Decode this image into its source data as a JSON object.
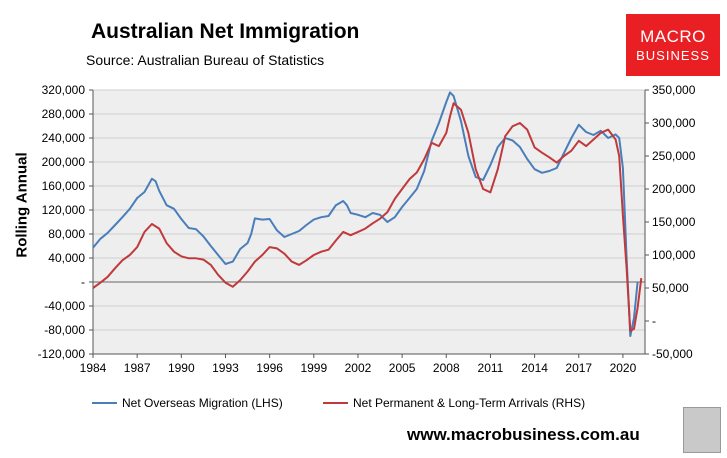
{
  "header": {
    "title": "Australian Net Immigration",
    "source": "Source: Australian Bureau of Statistics"
  },
  "logo": {
    "line1": "MACRO",
    "line2": "BUSINESS"
  },
  "footer": {
    "website": "www.macrobusiness.com.au"
  },
  "colors": {
    "nom": "#4a7ebb",
    "arrivals": "#c0393b",
    "plot_bg": "#eeeeee",
    "logo_red": "#ea1f24"
  },
  "chart_data": {
    "type": "line",
    "title": "Australian Net Immigration",
    "ylabel": "Rolling Annual",
    "xlabel": "",
    "x_ticks": [
      "1984",
      "1987",
      "1990",
      "1993",
      "1996",
      "1999",
      "2002",
      "2005",
      "2008",
      "2011",
      "2014",
      "2017",
      "2020"
    ],
    "left_axis": {
      "ylim": [
        -120000,
        320000
      ],
      "tick_values": [
        320000,
        280000,
        240000,
        200000,
        160000,
        120000,
        80000,
        40000,
        0,
        -40000,
        -80000,
        -120000
      ],
      "tick_labels": [
        "320,000",
        "280,000",
        "240,000",
        "200,000",
        "160,000",
        "120,000",
        "80,000",
        "40,000",
        "-",
        "-40,000",
        "-80,000",
        "-120,000"
      ]
    },
    "right_axis": {
      "ylim": [
        -50000,
        350000
      ],
      "tick_values": [
        350000,
        300000,
        250000,
        200000,
        150000,
        100000,
        50000,
        0,
        -50000
      ],
      "tick_labels": [
        "350,000",
        "300,000",
        "250,000",
        "200,000",
        "150,000",
        "100,000",
        "50,000",
        "-",
        "-50,000"
      ]
    },
    "legend_position": "bottom",
    "series": [
      {
        "name": "Net Overseas Migration (LHS)",
        "axis": "left",
        "x": [
          1984.0,
          1984.5,
          1985.0,
          1985.5,
          1986.0,
          1986.5,
          1987.0,
          1987.5,
          1988.0,
          1988.25,
          1988.5,
          1989.0,
          1989.5,
          1990.0,
          1990.5,
          1991.0,
          1991.5,
          1992.0,
          1992.5,
          1993.0,
          1993.5,
          1994.0,
          1994.5,
          1994.75,
          1995.0,
          1995.5,
          1996.0,
          1996.5,
          1997.0,
          1997.5,
          1998.0,
          1998.5,
          1999.0,
          1999.5,
          2000.0,
          2000.5,
          2001.0,
          2001.25,
          2001.5,
          2002.0,
          2002.5,
          2003.0,
          2003.5,
          2004.0,
          2004.5,
          2005.0,
          2005.5,
          2006.0,
          2006.5,
          2007.0,
          2007.5,
          2008.0,
          2008.25,
          2008.5,
          2009.0,
          2009.5,
          2010.0,
          2010.5,
          2011.0,
          2011.5,
          2012.0,
          2012.5,
          2013.0,
          2013.5,
          2014.0,
          2014.5,
          2015.0,
          2015.5,
          2016.0,
          2016.5,
          2017.0,
          2017.5,
          2018.0,
          2018.5,
          2019.0,
          2019.5,
          2019.75,
          2020.0,
          2020.25,
          2020.5,
          2020.75,
          2021.0
        ],
        "y": [
          57000,
          72000,
          82000,
          95000,
          108000,
          122000,
          140000,
          150000,
          172000,
          168000,
          152000,
          128000,
          122000,
          105000,
          90000,
          88000,
          76000,
          60000,
          45000,
          30000,
          34000,
          55000,
          65000,
          80000,
          106000,
          104000,
          105000,
          86000,
          75000,
          80000,
          85000,
          95000,
          104000,
          108000,
          110000,
          128000,
          135000,
          128000,
          115000,
          112000,
          108000,
          115000,
          112000,
          100000,
          108000,
          125000,
          140000,
          155000,
          185000,
          235000,
          265000,
          300000,
          316000,
          310000,
          268000,
          210000,
          175000,
          170000,
          195000,
          225000,
          240000,
          236000,
          225000,
          205000,
          188000,
          182000,
          185000,
          190000,
          215000,
          240000,
          262000,
          250000,
          245000,
          252000,
          240000,
          246000,
          240000,
          190000,
          40000,
          -90000,
          -60000,
          0
        ]
      },
      {
        "name": "Net Permanent & Long-Term Arrivals (RHS)",
        "axis": "right",
        "x": [
          1984.0,
          1984.5,
          1985.0,
          1985.5,
          1986.0,
          1986.5,
          1987.0,
          1987.5,
          1988.0,
          1988.5,
          1989.0,
          1989.5,
          1990.0,
          1990.5,
          1991.0,
          1991.5,
          1992.0,
          1992.5,
          1993.0,
          1993.5,
          1994.0,
          1994.5,
          1995.0,
          1995.5,
          1996.0,
          1996.5,
          1997.0,
          1997.5,
          1998.0,
          1998.5,
          1999.0,
          1999.5,
          2000.0,
          2000.5,
          2001.0,
          2001.5,
          2002.0,
          2002.5,
          2003.0,
          2003.5,
          2004.0,
          2004.5,
          2005.0,
          2005.5,
          2006.0,
          2006.5,
          2007.0,
          2007.5,
          2008.0,
          2008.25,
          2008.5,
          2009.0,
          2009.5,
          2010.0,
          2010.5,
          2011.0,
          2011.5,
          2012.0,
          2012.5,
          2013.0,
          2013.5,
          2014.0,
          2014.5,
          2015.0,
          2015.5,
          2016.0,
          2016.5,
          2017.0,
          2017.5,
          2018.0,
          2018.5,
          2019.0,
          2019.5,
          2019.75,
          2020.0,
          2020.25,
          2020.5,
          2020.75,
          2021.0,
          2021.25
        ],
        "y": [
          50000,
          58000,
          67000,
          80000,
          92000,
          100000,
          112000,
          135000,
          147000,
          140000,
          118000,
          105000,
          98000,
          95000,
          95000,
          93000,
          85000,
          70000,
          58000,
          52000,
          62000,
          75000,
          90000,
          100000,
          112000,
          110000,
          102000,
          90000,
          85000,
          92000,
          100000,
          105000,
          108000,
          122000,
          135000,
          130000,
          135000,
          140000,
          148000,
          155000,
          165000,
          185000,
          200000,
          215000,
          225000,
          245000,
          270000,
          265000,
          285000,
          310000,
          330000,
          320000,
          285000,
          230000,
          200000,
          195000,
          230000,
          280000,
          295000,
          300000,
          290000,
          263000,
          255000,
          248000,
          240000,
          250000,
          258000,
          273000,
          265000,
          275000,
          285000,
          290000,
          275000,
          250000,
          160000,
          80000,
          -15000,
          -12000,
          20000,
          65000
        ]
      }
    ]
  }
}
